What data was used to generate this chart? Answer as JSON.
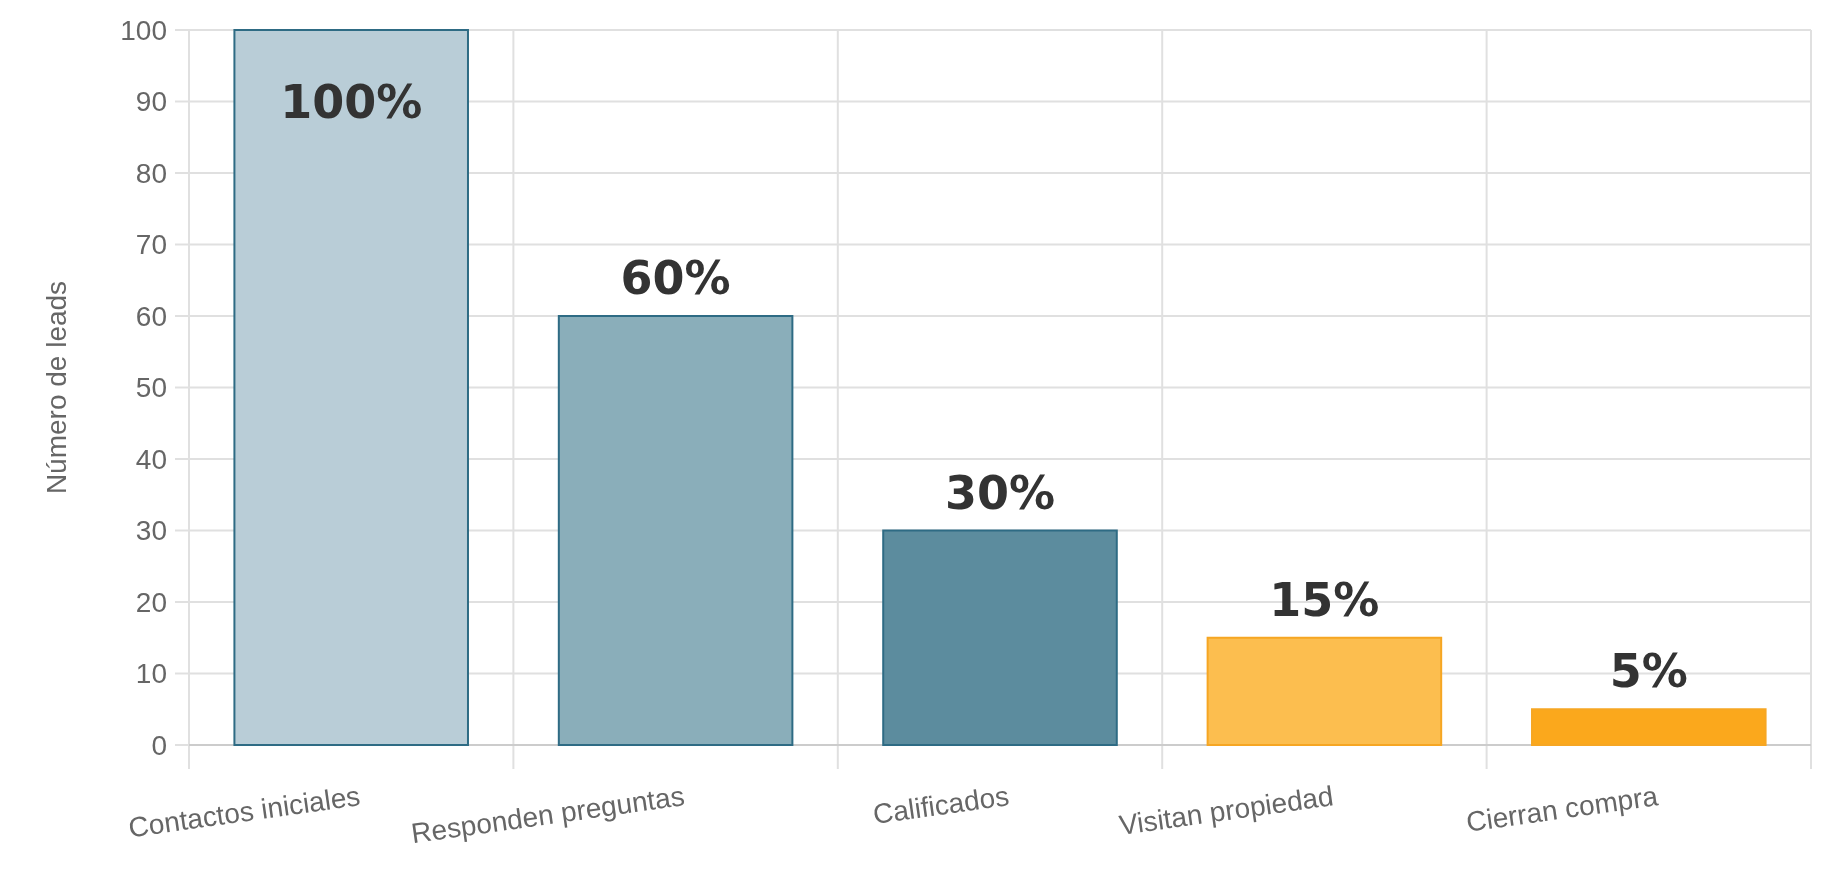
{
  "chart_data": {
    "type": "bar",
    "ylabel": "Número de leads",
    "categories": [
      "Contactos iniciales",
      "Responden preguntas",
      "Calificados",
      "Visitan propiedad",
      "Cierran compra"
    ],
    "values": [
      100,
      60,
      30,
      15,
      5
    ],
    "colors": [
      "#b9cdd7",
      "#8aaeba",
      "#5c8c9e",
      "#fcbe4f",
      "#fba81c"
    ],
    "value_labels": [
      "100%",
      "60%",
      "30%",
      "15%",
      "5%"
    ],
    "ylim": [
      0,
      100
    ],
    "yticks": [
      0,
      10,
      20,
      30,
      40,
      50,
      60,
      70,
      80,
      90,
      100
    ],
    "grid": true
  }
}
